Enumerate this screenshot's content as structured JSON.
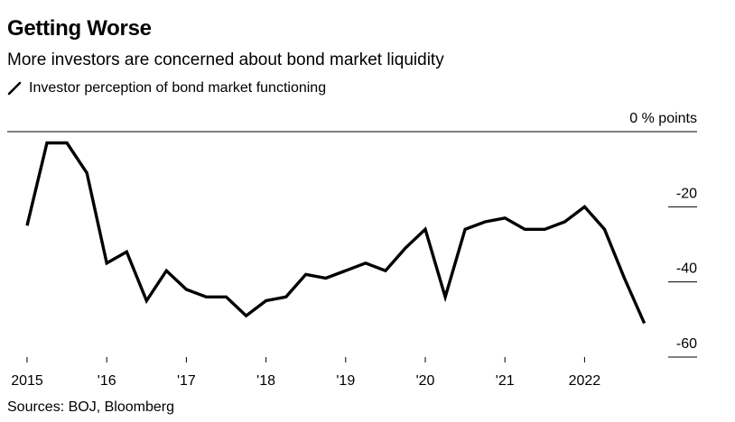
{
  "header": {
    "title": "Getting Worse",
    "subtitle": "More investors are concerned about bond market liquidity"
  },
  "footer": {
    "source": "Sources: BOJ, Bloomberg"
  },
  "chart_data": {
    "type": "line",
    "title": "Getting Worse",
    "subtitle": "More investors are concerned about bond market liquidity",
    "legend": {
      "placement": "top-left",
      "entries": [
        "Investor perception of bond market functioning"
      ]
    },
    "ylabel": "% points",
    "ylim": [
      -60,
      0
    ],
    "y_ticks": [
      0,
      -20,
      -40,
      -60
    ],
    "y_tick_labels": [
      "0 % points",
      "-20",
      "-40",
      "-60"
    ],
    "x_ticks": [
      2015,
      2016,
      2017,
      2018,
      2019,
      2020,
      2021,
      2022
    ],
    "x_tick_labels": [
      "2015",
      "'16",
      "'17",
      "'18",
      "'19",
      "'20",
      "'21",
      "2022"
    ],
    "grid": false,
    "line_color": "#000000",
    "series": [
      {
        "name": "Investor perception of bond market functioning",
        "x": [
          2015.0,
          2015.25,
          2015.5,
          2015.75,
          2016.0,
          2016.25,
          2016.5,
          2016.75,
          2017.0,
          2017.25,
          2017.5,
          2017.75,
          2018.0,
          2018.25,
          2018.5,
          2018.75,
          2019.0,
          2019.25,
          2019.5,
          2019.75,
          2020.0,
          2020.25,
          2020.5,
          2020.75,
          2021.0,
          2021.25,
          2021.5,
          2021.75,
          2022.0,
          2022.25,
          2022.5,
          2022.75,
          2023.0
        ],
        "values": [
          -25,
          -3,
          -3,
          -11,
          -35,
          -32,
          -45,
          -37,
          -42,
          -44,
          -44,
          -49,
          -45,
          -44,
          -38,
          -39,
          -37,
          -35,
          -37,
          -31,
          -26,
          -44,
          -26,
          -24,
          -23,
          -26,
          -26,
          -24,
          -20,
          -26,
          -39,
          -51,
          null
        ]
      }
    ]
  }
}
